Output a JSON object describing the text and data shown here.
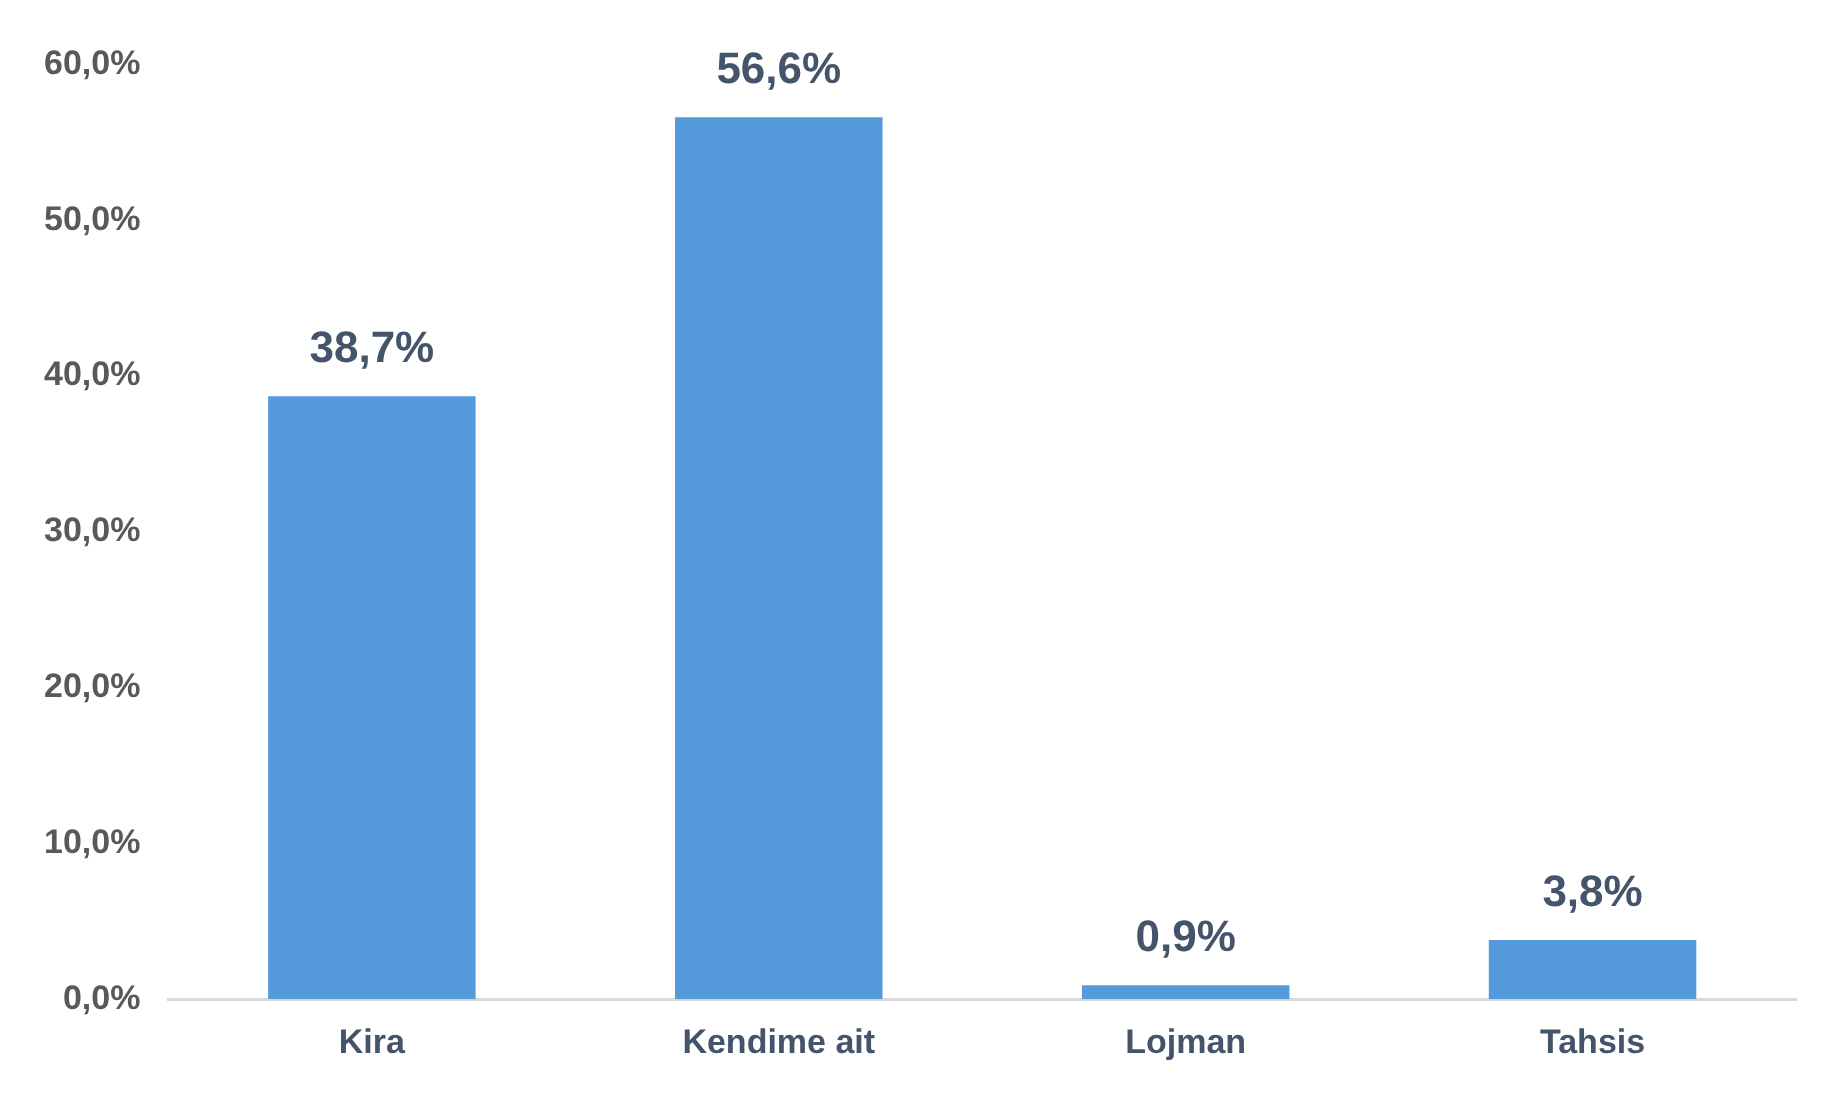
{
  "chart_data": {
    "type": "bar",
    "categories": [
      "Kira",
      "Kendime ait",
      "Lojman",
      "Tahsis"
    ],
    "values": [
      38.7,
      56.6,
      0.9,
      3.8
    ],
    "color": "#559bdb",
    "value_labels": [
      "38,7%",
      "56,6%",
      "0,9%",
      "3,8%"
    ],
    "ylim": [
      0,
      60
    ],
    "yticks": [
      {
        "value": 0,
        "label": "0,0%"
      },
      {
        "value": 10,
        "label": "10,0%"
      },
      {
        "value": 20,
        "label": "20,0%"
      },
      {
        "value": 30,
        "label": "30,0%"
      },
      {
        "value": 40,
        "label": "40,0%"
      },
      {
        "value": 50,
        "label": "50,0%"
      },
      {
        "value": 60,
        "label": "60,0%"
      }
    ],
    "grid": false,
    "legend": false
  }
}
